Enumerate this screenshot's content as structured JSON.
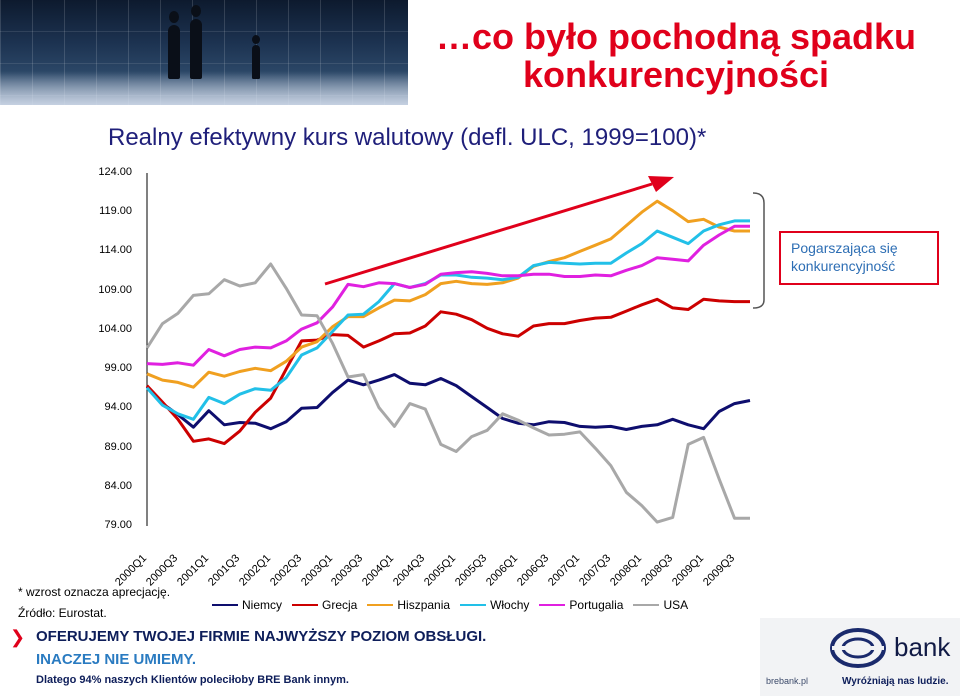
{
  "slide_title": "…co było pochodną spadku konkurencyjności",
  "chart_title": "Realny efektywny kurs walutowy (defl. ULC, 1999=100)*",
  "callout_text": "Pogarszająca się konkurencyjność",
  "footnote": "* wzrost oznacza aprecjację.",
  "source": "Źródło: Eurostat.",
  "banner": {
    "line1": "OFERUJEMY TWOJEJ FIRMIE NAJWYŻSZY POZIOM OBSŁUGI.",
    "line2": "INACZEJ NIE UMIEMY.",
    "line3": "Dlatego 94% naszych Klientów poleciłoby BRE Bank innym.",
    "bank_name": "bank",
    "url": "brebank.pl",
    "slogan": "Wyróżniają nas ludzie."
  },
  "colors": {
    "title_red": "#e0001b",
    "chart_title_navy": "#1f1f7a",
    "callout_blue": "#2d6eb4"
  },
  "chart_data": {
    "type": "line",
    "ylim": [
      79,
      124
    ],
    "y_ticks": [
      "124.00",
      "119.00",
      "114.00",
      "109.00",
      "104.00",
      "99.00",
      "94.00",
      "89.00",
      "84.00",
      "79.00"
    ],
    "x_tick_labels": [
      "2000Q1",
      "2000Q3",
      "2001Q1",
      "2001Q3",
      "2002Q1",
      "2002Q3",
      "2003Q1",
      "2003Q3",
      "2004Q1",
      "2004Q3",
      "2005Q1",
      "2005Q3",
      "2006Q1",
      "2006Q3",
      "2007Q1",
      "2007Q3",
      "2008Q1",
      "2008Q3",
      "2009Q1",
      "2009Q3"
    ],
    "series": [
      {
        "name": "Niemcy",
        "color": "#0e0e6e",
        "values": [
          96.8,
          94.6,
          93.2,
          91.6,
          93.7,
          91.9,
          92.2,
          92.1,
          91.4,
          92.3,
          94.0,
          94.1,
          96.0,
          97.6,
          97.0,
          97.6,
          98.3,
          97.2,
          97.0,
          97.8,
          96.9,
          95.5,
          94.1,
          92.7,
          92.1,
          91.9,
          92.3,
          92.2,
          91.7,
          91.6,
          91.7,
          91.3,
          91.7,
          91.9,
          92.6,
          91.9,
          91.4,
          93.6,
          94.6,
          95.0
        ]
      },
      {
        "name": "Grecja",
        "color": "#cc0000",
        "values": [
          96.9,
          94.8,
          92.6,
          89.8,
          90.1,
          89.5,
          91.1,
          93.5,
          95.3,
          99.0,
          102.6,
          102.7,
          103.4,
          103.3,
          101.8,
          102.6,
          103.5,
          103.6,
          104.5,
          106.3,
          106.0,
          105.3,
          104.2,
          103.5,
          103.2,
          104.5,
          104.8,
          104.8,
          105.2,
          105.5,
          105.6,
          106.4,
          107.2,
          107.9,
          106.8,
          106.6,
          107.9,
          107.7,
          107.6,
          107.6
        ]
      },
      {
        "name": "Hiszpania",
        "color": "#f0a020",
        "values": [
          98.4,
          97.6,
          97.3,
          96.7,
          98.6,
          98.1,
          98.7,
          99.1,
          98.8,
          100.0,
          101.8,
          102.5,
          104.4,
          105.7,
          105.7,
          106.8,
          107.8,
          107.7,
          108.5,
          109.9,
          110.2,
          109.9,
          109.8,
          110.0,
          110.6,
          112.1,
          112.7,
          113.2,
          114.0,
          114.8,
          115.6,
          117.3,
          119.0,
          120.4,
          119.2,
          117.8,
          118.1,
          117.1,
          116.6,
          116.6
        ]
      },
      {
        "name": "Włochy",
        "color": "#22c0e8",
        "values": [
          96.6,
          94.4,
          93.3,
          92.6,
          95.4,
          94.6,
          95.8,
          96.5,
          96.3,
          97.9,
          100.8,
          101.7,
          103.8,
          105.9,
          106.0,
          107.6,
          109.9,
          109.4,
          109.9,
          111.0,
          111.0,
          110.7,
          110.6,
          110.4,
          110.7,
          112.2,
          112.6,
          112.5,
          112.4,
          112.5,
          112.5,
          113.8,
          115.0,
          116.6,
          115.8,
          115.0,
          116.6,
          117.4,
          117.9,
          117.9
        ]
      },
      {
        "name": "Portugalia",
        "color": "#e020e0",
        "values": [
          99.7,
          99.6,
          99.8,
          99.5,
          101.5,
          100.7,
          101.5,
          101.8,
          101.7,
          102.6,
          104.1,
          104.9,
          106.9,
          109.8,
          109.5,
          110.0,
          109.9,
          109.4,
          109.8,
          111.1,
          111.3,
          111.4,
          111.2,
          110.9,
          110.9,
          111.1,
          111.1,
          110.8,
          110.8,
          111.0,
          110.9,
          111.6,
          112.2,
          113.2,
          113.0,
          112.8,
          114.8,
          116.1,
          117.2,
          117.2
        ]
      },
      {
        "name": "USA",
        "color": "#a8a8a8",
        "values": [
          101.7,
          104.8,
          106.1,
          108.4,
          108.6,
          110.4,
          109.6,
          110.0,
          112.4,
          109.3,
          105.9,
          105.8,
          102.3,
          98.0,
          98.3,
          94.1,
          91.7,
          94.6,
          93.9,
          89.4,
          88.5,
          90.4,
          91.2,
          93.3,
          92.5,
          91.5,
          90.6,
          90.7,
          91.0,
          88.9,
          86.7,
          83.3,
          81.6,
          79.5,
          80.1,
          89.4,
          90.3,
          85.0,
          80.0,
          80.0
        ]
      }
    ],
    "annotation_arrow": "up",
    "callout": "Pogarszająca się konkurencyjność"
  }
}
